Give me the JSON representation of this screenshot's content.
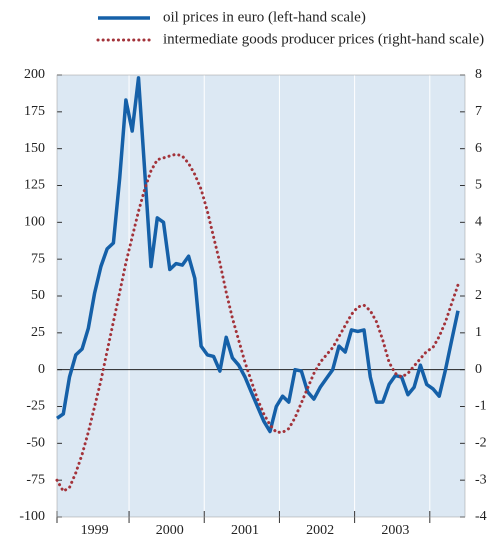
{
  "chart_data": {
    "type": "line",
    "categories": [
      null,
      null,
      null,
      null,
      null,
      null,
      "1999",
      null,
      null,
      null,
      null,
      null,
      null,
      null,
      null,
      null,
      null,
      null,
      "2000",
      null,
      null,
      null,
      null,
      null,
      null,
      null,
      null,
      null,
      null,
      null,
      "2001",
      null,
      null,
      null,
      null,
      null,
      null,
      null,
      null,
      null,
      null,
      null,
      "2002",
      null,
      null,
      null,
      null,
      null,
      null,
      null,
      null,
      null,
      null,
      null,
      "2003",
      null,
      null,
      null,
      null,
      null,
      null,
      null,
      null,
      null,
      null
    ],
    "series": [
      {
        "name": "oil prices in euro (left-hand scale)",
        "color": "#1560a8",
        "axis": "y",
        "values": [
          -33,
          -30,
          -5,
          10,
          14,
          28,
          52,
          70,
          82,
          86,
          130,
          183,
          162,
          198,
          135,
          70,
          103,
          100,
          68,
          72,
          71,
          77,
          62,
          16,
          10,
          9,
          -1,
          22,
          8,
          3,
          -5,
          -15,
          -25,
          -35,
          -42,
          -25,
          -18,
          -22,
          0,
          -1,
          -15,
          -20,
          -12,
          -6,
          0,
          16,
          12,
          27,
          26,
          27,
          -5,
          -22,
          -22,
          -10,
          -4,
          -5,
          -17,
          -12,
          3,
          -10,
          -13,
          -18,
          0,
          20,
          40
        ]
      },
      {
        "name": "intermediate goods producer prices (right-hand scale)",
        "color": "#a3333a",
        "axis": "y2",
        "values": [
          -3.0,
          -3.3,
          -3.2,
          -2.8,
          -2.3,
          -1.7,
          -1.0,
          -0.3,
          0.5,
          1.3,
          2.1,
          2.9,
          3.6,
          4.3,
          4.9,
          5.4,
          5.7,
          5.75,
          5.8,
          5.85,
          5.8,
          5.6,
          5.3,
          4.9,
          4.3,
          3.6,
          2.9,
          2.1,
          1.4,
          0.8,
          0.2,
          -0.3,
          -0.8,
          -1.2,
          -1.5,
          -1.7,
          -1.7,
          -1.6,
          -1.3,
          -0.9,
          -0.5,
          -0.1,
          0.2,
          0.4,
          0.6,
          0.9,
          1.2,
          1.5,
          1.7,
          1.75,
          1.6,
          1.3,
          0.8,
          0.2,
          -0.1,
          -0.2,
          -0.1,
          0.1,
          0.3,
          0.5,
          0.6,
          0.9,
          1.3,
          1.8,
          2.3
        ]
      }
    ],
    "ylim": [
      -100,
      200
    ],
    "yticks": [
      -100,
      -75,
      -50,
      -25,
      0,
      25,
      50,
      75,
      100,
      125,
      150,
      175,
      200
    ],
    "y2lim": [
      -4,
      8
    ],
    "y2ticks": [
      -4,
      -3,
      -2,
      -1,
      0,
      1,
      2,
      3,
      4,
      5,
      6,
      7,
      8
    ],
    "legend": "top"
  }
}
